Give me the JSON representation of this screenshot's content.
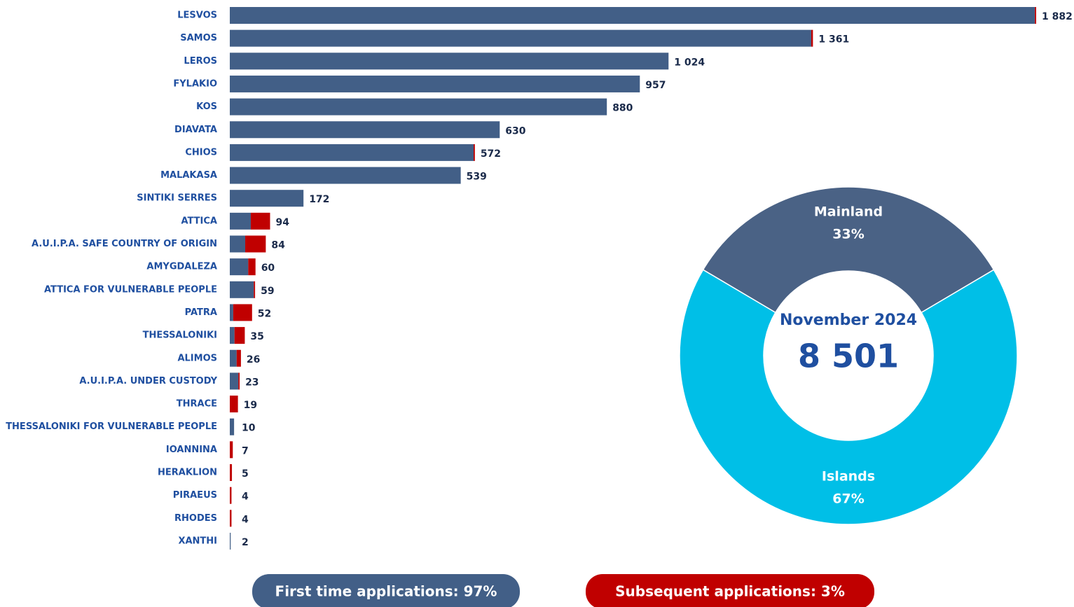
{
  "chart_data": [
    {
      "type": "stacked-bar-horizontal",
      "categories": [
        "LESVOS",
        "SAMOS",
        "LEROS",
        "FYLAKIO",
        "KOS",
        "DIAVATA",
        "CHIOS",
        "MALAKASA",
        "SINTIKI SERRES",
        "ATTICA",
        "A.U.I.P.A. SAFE COUNTRY OF ORIGIN",
        "AMYGDALEZA",
        "ATTICA FOR VULNERABLE PEOPLE",
        "PATRA",
        "THESSALONIKI",
        "ALIMOS",
        "A.U.I.P.A. UNDER CUSTODY",
        "THRACE",
        "THESSALONIKI FOR VULNERABLE PEOPLE",
        "IOANNINA",
        "HERAKLION",
        "PIRAEUS",
        "RHODES",
        "XANTHI"
      ],
      "series": [
        {
          "name": "First time applications: 97%",
          "color": "#425f87",
          "values": [
            1879,
            1357,
            1024,
            957,
            880,
            630,
            569,
            539,
            172,
            49,
            36,
            43,
            56,
            8,
            11,
            16,
            20,
            0,
            10,
            0,
            0,
            0,
            0,
            2
          ]
        },
        {
          "name": "Subsequent applications: 3%",
          "color": "#c00000",
          "values": [
            3,
            4,
            0,
            0,
            0,
            0,
            3,
            0,
            0,
            45,
            48,
            17,
            3,
            44,
            24,
            10,
            3,
            19,
            0,
            7,
            5,
            4,
            4,
            0
          ]
        }
      ],
      "total_labels": [
        "1 882",
        "1 361",
        "1 024",
        "957",
        "880",
        "630",
        "572",
        "539",
        "172",
        "94",
        "84",
        "60",
        "59",
        "52",
        "35",
        "26",
        "23",
        "19",
        "10",
        "7",
        "5",
        "4",
        "4",
        "2"
      ]
    },
    {
      "type": "donut",
      "categories": [
        "Mainland",
        "Islands"
      ],
      "values": [
        33,
        67
      ],
      "value_labels": [
        "33%",
        "67%"
      ],
      "colors": [
        "#4a6285",
        "#00bfe7"
      ],
      "center_title": "November 2024",
      "center_label": "8 501"
    }
  ]
}
